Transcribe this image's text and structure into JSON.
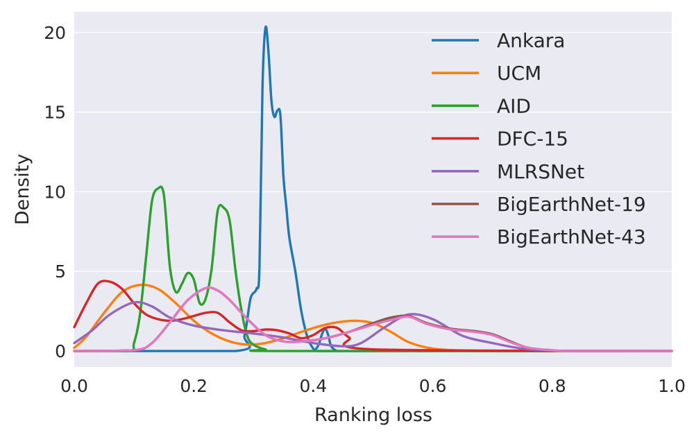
{
  "chart_data": {
    "type": "line",
    "title": "",
    "xlabel": "Ranking loss",
    "ylabel": "Density",
    "xlim": [
      0.0,
      1.0
    ],
    "ylim": [
      -1.0,
      21.3
    ],
    "x_ticks": [
      0.0,
      0.2,
      0.4,
      0.6,
      0.8,
      1.0
    ],
    "x_tick_labels": [
      "0.0",
      "0.2",
      "0.4",
      "0.6",
      "0.8",
      "1.0"
    ],
    "y_ticks": [
      0,
      5,
      10,
      15,
      20
    ],
    "y_tick_labels": [
      "0",
      "5",
      "10",
      "15",
      "20"
    ],
    "grid": true,
    "legend_position": "top-right",
    "background": "#eaeaf2",
    "series": [
      {
        "name": "Ankara",
        "color": "#1f77b4",
        "x": [
          0.0,
          0.27,
          0.285,
          0.295,
          0.305,
          0.31,
          0.315,
          0.32,
          0.325,
          0.33,
          0.335,
          0.34,
          0.345,
          0.35,
          0.355,
          0.36,
          0.37,
          0.38,
          0.39,
          0.4,
          0.405,
          0.41,
          0.415,
          0.42,
          0.425,
          0.43,
          0.44,
          0.45,
          1.0
        ],
        "y": [
          0.0,
          0.0,
          1.0,
          3.3,
          3.9,
          5.3,
          16.5,
          20.3,
          18.8,
          15.7,
          14.7,
          15.1,
          14.8,
          11.0,
          9.0,
          7.1,
          5.0,
          2.5,
          0.9,
          0.15,
          0.15,
          0.5,
          1.1,
          1.4,
          1.0,
          0.3,
          0.0,
          0.0,
          0.0
        ]
      },
      {
        "name": "UCM",
        "color": "#ff7f0e",
        "x": [
          0.0,
          0.02,
          0.05,
          0.08,
          0.11,
          0.14,
          0.17,
          0.2,
          0.23,
          0.26,
          0.29,
          0.32,
          0.35,
          0.38,
          0.41,
          0.44,
          0.47,
          0.5,
          0.53,
          0.56,
          0.6,
          0.65,
          0.7,
          1.0
        ],
        "y": [
          0.2,
          0.9,
          2.4,
          3.7,
          4.15,
          3.9,
          3.0,
          1.9,
          1.1,
          0.6,
          0.4,
          0.5,
          0.8,
          1.2,
          1.55,
          1.8,
          1.9,
          1.75,
          1.2,
          0.55,
          0.15,
          0.03,
          0.0,
          0.0
        ]
      },
      {
        "name": "AID",
        "color": "#2ca02c",
        "x": [
          0.0,
          0.09,
          0.1,
          0.11,
          0.12,
          0.13,
          0.14,
          0.15,
          0.16,
          0.17,
          0.18,
          0.19,
          0.2,
          0.21,
          0.22,
          0.23,
          0.24,
          0.25,
          0.26,
          0.27,
          0.28,
          0.29,
          0.3,
          0.32,
          0.35,
          1.0
        ],
        "y": [
          0.0,
          0.0,
          0.5,
          2.3,
          5.8,
          9.4,
          10.2,
          9.8,
          5.3,
          3.7,
          4.2,
          4.9,
          4.5,
          3.0,
          3.3,
          5.2,
          8.8,
          9.0,
          8.2,
          5.0,
          2.5,
          0.9,
          0.4,
          0.1,
          0.0,
          0.0
        ]
      },
      {
        "name": "DFC-15",
        "color": "#d62728",
        "x": [
          0.0,
          0.02,
          0.04,
          0.06,
          0.08,
          0.1,
          0.12,
          0.14,
          0.16,
          0.18,
          0.2,
          0.22,
          0.24,
          0.26,
          0.28,
          0.3,
          0.32,
          0.34,
          0.36,
          0.38,
          0.4,
          0.42,
          0.44,
          0.46,
          0.5,
          1.0
        ],
        "y": [
          1.5,
          3.0,
          4.25,
          4.35,
          3.9,
          3.0,
          2.3,
          2.0,
          1.9,
          2.0,
          2.2,
          2.4,
          2.4,
          1.8,
          1.3,
          1.25,
          1.35,
          1.3,
          1.1,
          0.8,
          1.0,
          1.45,
          1.45,
          0.85,
          0.1,
          0.0
        ]
      },
      {
        "name": "MLRSNet",
        "color": "#9467bd",
        "x": [
          0.0,
          0.03,
          0.06,
          0.1,
          0.13,
          0.16,
          0.2,
          0.25,
          0.3,
          0.35,
          0.4,
          0.45,
          0.48,
          0.52,
          0.56,
          0.6,
          0.65,
          0.7,
          0.75,
          0.8,
          0.85,
          1.0
        ],
        "y": [
          0.5,
          1.3,
          2.3,
          3.05,
          2.8,
          2.1,
          1.6,
          1.3,
          1.1,
          0.85,
          0.5,
          0.3,
          0.5,
          1.5,
          2.3,
          2.0,
          0.95,
          0.5,
          0.15,
          0.03,
          0.0,
          0.0
        ]
      },
      {
        "name": "BigEarthNet-19",
        "color": "#8c564b",
        "x": [
          0.0,
          0.1,
          0.13,
          0.16,
          0.19,
          0.22,
          0.24,
          0.26,
          0.29,
          0.32,
          0.35,
          0.38,
          0.42,
          0.46,
          0.5,
          0.53,
          0.56,
          0.59,
          0.63,
          0.67,
          0.7,
          0.73,
          0.76,
          0.8,
          0.83,
          1.0
        ],
        "y": [
          0.0,
          0.05,
          0.5,
          1.8,
          3.2,
          3.95,
          3.8,
          3.2,
          2.0,
          1.0,
          0.6,
          0.6,
          0.8,
          1.2,
          1.75,
          2.1,
          2.2,
          1.75,
          1.4,
          1.25,
          1.05,
          0.6,
          0.2,
          0.05,
          0.0,
          0.0
        ]
      },
      {
        "name": "BigEarthNet-43",
        "color": "#e377c2",
        "x": [
          0.0,
          0.1,
          0.13,
          0.16,
          0.19,
          0.22,
          0.24,
          0.26,
          0.29,
          0.32,
          0.35,
          0.38,
          0.42,
          0.46,
          0.5,
          0.53,
          0.56,
          0.59,
          0.63,
          0.67,
          0.7,
          0.73,
          0.76,
          0.8,
          0.83,
          1.0
        ],
        "y": [
          0.0,
          0.05,
          0.5,
          1.8,
          3.2,
          3.95,
          3.8,
          3.2,
          2.0,
          1.0,
          0.6,
          0.6,
          0.8,
          1.2,
          1.65,
          1.95,
          2.15,
          1.7,
          1.35,
          1.2,
          1.0,
          0.55,
          0.2,
          0.05,
          0.0,
          0.0
        ]
      }
    ]
  }
}
